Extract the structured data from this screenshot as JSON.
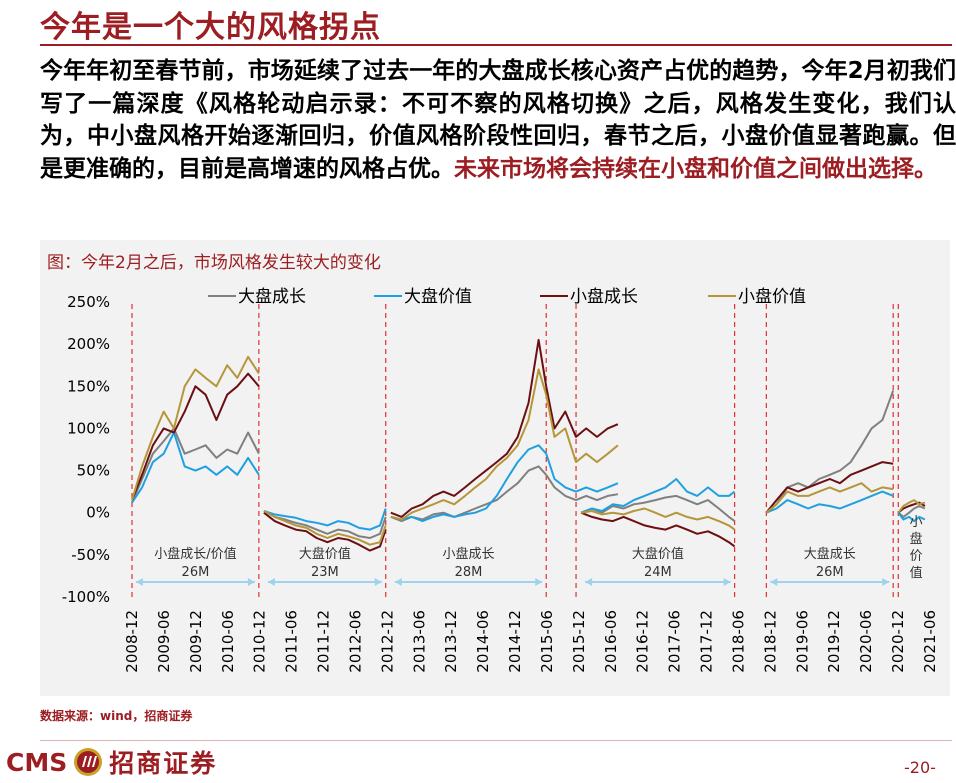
{
  "header": {
    "title": "今年是一个大的风格拐点"
  },
  "paragraph": {
    "text_normal": "今年年初至春节前，市场延续了过去一年的大盘成长核心资产占优的趋势，今年2月初我们写了一篇深度《风格轮动启示录：不可不察的风格切换》之后，风格发生变化，我们认为，中小盘风格开始逐渐回归，价值风格阶段性回归，春节之后，小盘价值显著跑赢。但是更准确的，目前是高增速的风格占优。",
    "text_highlight": "未来市场将会持续在小盘和价值之间做出选择。"
  },
  "chart_caption": "图：今年2月之后，市场风格发生较大的变化",
  "source": "数据来源：wind，招商证券",
  "footer": {
    "logo_latin": "CMS",
    "logo_cn": "招商证券",
    "page_number": "-20-"
  },
  "colors": {
    "accent": "#9c1d22",
    "large_growth": "#808080",
    "large_value": "#1fa0e0",
    "small_growth": "#6b0f12",
    "small_value": "#b5963a",
    "divider": "#e03030",
    "arrow": "#9ed3ec"
  },
  "chart_data": {
    "type": "line",
    "title": "今年2月之后，市场风格发生较大的变化",
    "ylim": [
      -100,
      250
    ],
    "yticks": [
      250,
      200,
      150,
      100,
      50,
      0,
      -50,
      -100
    ],
    "ytick_labels": [
      "250%",
      "200%",
      "150%",
      "100%",
      "50%",
      "0%",
      "-50%",
      "-100%"
    ],
    "xtick_labels": [
      "2008-12",
      "2009-06",
      "2009-12",
      "2010-06",
      "2010-12",
      "2011-06",
      "2011-12",
      "2012-06",
      "2012-12",
      "2013-06",
      "2013-12",
      "2014-06",
      "2014-12",
      "2015-06",
      "2015-12",
      "2016-06",
      "2016-12",
      "2017-06",
      "2017-12",
      "2018-06",
      "2018-12",
      "2019-06",
      "2019-12",
      "2020-06",
      "2020-12",
      "2021-06"
    ],
    "x_start": 2008.92,
    "x_end": 2021.5,
    "legend": [
      "大盘成长",
      "大盘价值",
      "小盘成长",
      "小盘价值"
    ],
    "legend_position": "top",
    "dividers": [
      2008.92,
      2010.92,
      2012.92,
      2015.45,
      2015.92,
      2018.42,
      2018.92,
      2020.92,
      2021.0
    ],
    "segments": [
      {
        "x": [
          2008.92,
          2009.08,
          2009.25,
          2009.42,
          2009.58,
          2009.75,
          2009.92,
          2010.08,
          2010.25,
          2010.42,
          2010.58,
          2010.75,
          2010.92
        ],
        "series": {
          "大盘成长": [
            12,
            40,
            70,
            85,
            100,
            70,
            75,
            80,
            65,
            75,
            70,
            95,
            70
          ],
          "大盘价值": [
            12,
            30,
            60,
            70,
            95,
            55,
            50,
            55,
            45,
            55,
            45,
            65,
            45
          ],
          "小盘成长": [
            15,
            45,
            80,
            100,
            95,
            120,
            150,
            140,
            110,
            140,
            150,
            165,
            150
          ],
          "小盘价值": [
            15,
            55,
            90,
            120,
            100,
            150,
            170,
            160,
            150,
            175,
            160,
            185,
            165
          ]
        }
      },
      {
        "x": [
          2011.0,
          2011.17,
          2011.33,
          2011.5,
          2011.67,
          2011.83,
          2012.0,
          2012.17,
          2012.33,
          2012.5,
          2012.67,
          2012.83,
          2012.92
        ],
        "series": {
          "大盘成长": [
            2,
            -5,
            -8,
            -12,
            -15,
            -20,
            -25,
            -20,
            -22,
            -28,
            -30,
            -25,
            -5
          ],
          "大盘价值": [
            2,
            -2,
            -4,
            -6,
            -10,
            -12,
            -15,
            -10,
            -12,
            -18,
            -20,
            -15,
            5
          ],
          "小盘成长": [
            0,
            -10,
            -15,
            -20,
            -22,
            -30,
            -35,
            -30,
            -32,
            -38,
            -45,
            -40,
            -20
          ],
          "小盘价值": [
            2,
            -5,
            -10,
            -15,
            -18,
            -25,
            -30,
            -25,
            -28,
            -32,
            -38,
            -35,
            -15
          ]
        }
      },
      {
        "x": [
          2013.0,
          2013.17,
          2013.33,
          2013.5,
          2013.67,
          2013.83,
          2014.0,
          2014.17,
          2014.33,
          2014.5,
          2014.67,
          2014.83,
          2015.0,
          2015.17,
          2015.33,
          2015.45
        ],
        "series": {
          "大盘成长": [
            -5,
            -10,
            -5,
            -8,
            -2,
            0,
            -5,
            0,
            5,
            10,
            15,
            25,
            35,
            50,
            55,
            45
          ],
          "大盘价值": [
            -5,
            -8,
            -5,
            -10,
            -5,
            -2,
            -5,
            -2,
            0,
            5,
            20,
            40,
            60,
            75,
            80,
            70
          ],
          "小盘成长": [
            0,
            -5,
            5,
            10,
            20,
            25,
            20,
            30,
            40,
            50,
            60,
            70,
            90,
            130,
            205,
            150
          ],
          "小盘价值": [
            -5,
            -8,
            0,
            5,
            10,
            15,
            10,
            20,
            30,
            40,
            55,
            65,
            80,
            110,
            170,
            140
          ]
        }
      },
      {
        "x": [
          2015.45,
          2015.58,
          2015.75,
          2015.92,
          2016.08,
          2016.25,
          2016.42,
          2016.58
        ],
        "series": {
          "大盘成长": [
            45,
            30,
            20,
            15,
            20,
            15,
            20,
            22
          ],
          "大盘价值": [
            70,
            40,
            30,
            25,
            30,
            25,
            30,
            35
          ],
          "小盘成长": [
            150,
            100,
            120,
            90,
            100,
            90,
            100,
            105
          ],
          "小盘价值": [
            140,
            90,
            100,
            60,
            70,
            60,
            70,
            80
          ]
        }
      },
      {
        "x": [
          2016.0,
          2016.17,
          2016.33,
          2016.5,
          2016.67,
          2016.83,
          2017.0,
          2017.17,
          2017.33,
          2017.5,
          2017.67,
          2017.83,
          2018.0,
          2018.17,
          2018.33,
          2018.42
        ],
        "series": {
          "大盘成长": [
            0,
            5,
            0,
            8,
            5,
            10,
            12,
            15,
            18,
            20,
            15,
            10,
            15,
            5,
            -5,
            -10
          ],
          "大盘价值": [
            0,
            5,
            2,
            10,
            8,
            15,
            20,
            25,
            30,
            40,
            25,
            20,
            30,
            20,
            20,
            25
          ],
          "小盘成长": [
            0,
            -5,
            -8,
            -10,
            -5,
            -10,
            -15,
            -18,
            -20,
            -15,
            -20,
            -25,
            -22,
            -28,
            -35,
            -40
          ],
          "小盘价值": [
            0,
            2,
            -2,
            0,
            -2,
            2,
            5,
            0,
            -5,
            0,
            -5,
            -8,
            -5,
            -10,
            -15,
            -20
          ]
        }
      },
      {
        "x": [
          2018.92,
          2019.08,
          2019.25,
          2019.42,
          2019.58,
          2019.75,
          2019.92,
          2020.08,
          2020.25,
          2020.42,
          2020.58,
          2020.75,
          2020.92
        ],
        "series": {
          "大盘成长": [
            0,
            10,
            30,
            35,
            30,
            40,
            45,
            50,
            60,
            80,
            100,
            110,
            145
          ],
          "大盘价值": [
            0,
            5,
            15,
            10,
            5,
            10,
            8,
            5,
            10,
            15,
            20,
            25,
            20
          ],
          "小盘成长": [
            0,
            15,
            30,
            25,
            30,
            35,
            40,
            35,
            45,
            50,
            55,
            60,
            58
          ],
          "小盘价值": [
            0,
            10,
            25,
            20,
            20,
            25,
            30,
            25,
            30,
            35,
            25,
            30,
            28
          ]
        }
      },
      {
        "x": [
          2021.0,
          2021.08,
          2021.17,
          2021.25,
          2021.33,
          2021.42
        ],
        "series": {
          "大盘成长": [
            0,
            -5,
            0,
            5,
            8,
            5
          ],
          "大盘价值": [
            0,
            -8,
            -5,
            -10,
            -5,
            -8
          ],
          "小盘成长": [
            0,
            5,
            8,
            10,
            12,
            8
          ],
          "小盘价值": [
            0,
            8,
            12,
            15,
            10,
            12
          ]
        }
      }
    ],
    "annotations": [
      {
        "label": "小盘成长/价值",
        "period": "26M"
      },
      {
        "label": "大盘价值",
        "period": "23M"
      },
      {
        "label": "小盘成长",
        "period": "28M"
      },
      {
        "label": "大盘价值",
        "period": "24M"
      },
      {
        "label": "大盘成长",
        "period": "26M"
      },
      {
        "label": "小盘价值",
        "period": ""
      }
    ],
    "annotation_spans": [
      [
        2008.92,
        2010.92
      ],
      [
        2011.0,
        2012.92
      ],
      [
        2013.0,
        2015.45
      ],
      [
        2016.0,
        2018.42
      ],
      [
        2018.92,
        2020.92
      ],
      [
        2021.0,
        2021.5
      ]
    ]
  }
}
